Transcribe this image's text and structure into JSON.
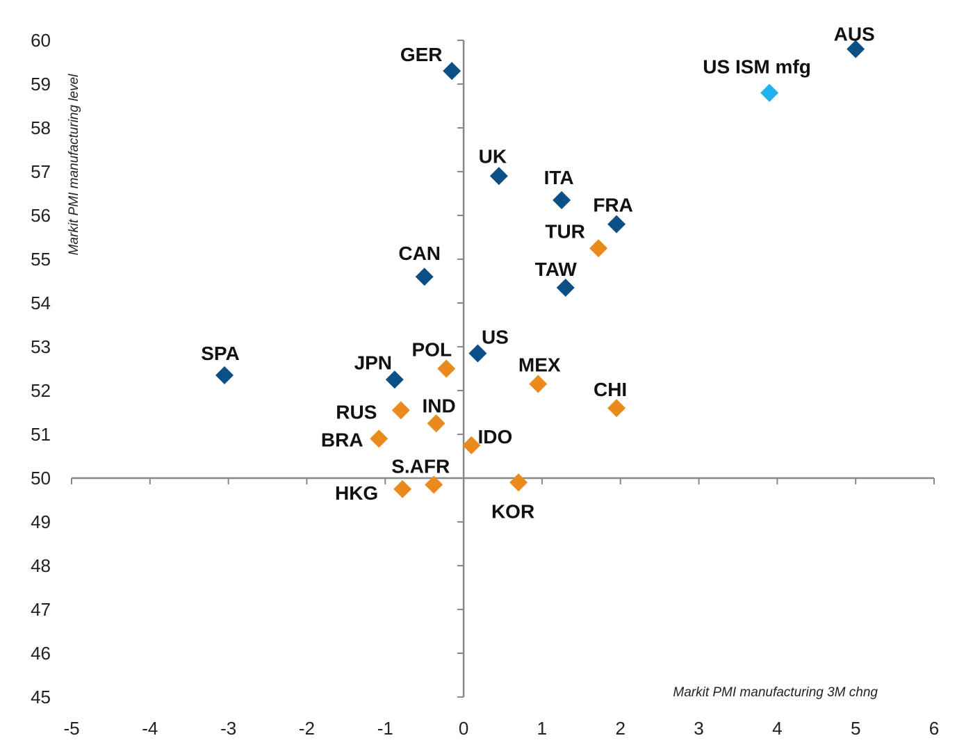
{
  "chart_data": {
    "type": "scatter",
    "title": "",
    "xlabel": "Markit PMI manufacturing 3M chng",
    "ylabel": "Markit PMI manufacturing level",
    "xlim": [
      -5,
      6
    ],
    "ylim": [
      45,
      60
    ],
    "x_ticks": [
      "-5",
      "-4",
      "-3",
      "-2",
      "-1",
      "0",
      "1",
      "2",
      "3",
      "4",
      "5",
      "6"
    ],
    "y_ticks": [
      "45",
      "46",
      "47",
      "48",
      "49",
      "50",
      "51",
      "52",
      "53",
      "54",
      "55",
      "56",
      "57",
      "58",
      "59",
      "60"
    ],
    "axis_cross": {
      "x": 0,
      "y": 50
    },
    "grid": false,
    "legend": "none",
    "colors": {
      "developed": "#0a4f86",
      "emerging": "#eb8a1c",
      "us_ism": "#1eb3ec",
      "axis": "#888888"
    },
    "points": [
      {
        "label": "AUS",
        "x": 5.0,
        "y": 59.8,
        "group": "developed"
      },
      {
        "label": "US ISM mfg",
        "x": 3.9,
        "y": 58.8,
        "group": "us_ism"
      },
      {
        "label": "GER",
        "x": -0.15,
        "y": 59.3,
        "group": "developed"
      },
      {
        "label": "UK",
        "x": 0.45,
        "y": 56.9,
        "group": "developed"
      },
      {
        "label": "ITA",
        "x": 1.25,
        "y": 56.35,
        "group": "developed"
      },
      {
        "label": "FRA",
        "x": 1.95,
        "y": 55.8,
        "group": "developed"
      },
      {
        "label": "TUR",
        "x": 1.72,
        "y": 55.25,
        "group": "emerging"
      },
      {
        "label": "CAN",
        "x": -0.5,
        "y": 54.6,
        "group": "developed"
      },
      {
        "label": "TAW",
        "x": 1.3,
        "y": 54.35,
        "group": "developed"
      },
      {
        "label": "US",
        "x": 0.18,
        "y": 52.85,
        "group": "developed"
      },
      {
        "label": "SPA",
        "x": -3.05,
        "y": 52.35,
        "group": "developed"
      },
      {
        "label": "POL",
        "x": -0.22,
        "y": 52.5,
        "group": "emerging"
      },
      {
        "label": "JPN",
        "x": -0.88,
        "y": 52.25,
        "group": "developed"
      },
      {
        "label": "MEX",
        "x": 0.95,
        "y": 52.15,
        "group": "emerging"
      },
      {
        "label": "CHI",
        "x": 1.95,
        "y": 51.6,
        "group": "emerging"
      },
      {
        "label": "RUS",
        "x": -0.8,
        "y": 51.55,
        "group": "emerging"
      },
      {
        "label": "IND",
        "x": -0.35,
        "y": 51.25,
        "group": "emerging"
      },
      {
        "label": "BRA",
        "x": -1.08,
        "y": 50.9,
        "group": "emerging"
      },
      {
        "label": "IDO",
        "x": 0.1,
        "y": 50.75,
        "group": "emerging"
      },
      {
        "label": "S.AFR",
        "x": -0.38,
        "y": 49.85,
        "group": "emerging"
      },
      {
        "label": "HKG",
        "x": -0.78,
        "y": 49.75,
        "group": "emerging"
      },
      {
        "label": "KOR",
        "x": 0.7,
        "y": 49.9,
        "group": "emerging"
      }
    ]
  }
}
